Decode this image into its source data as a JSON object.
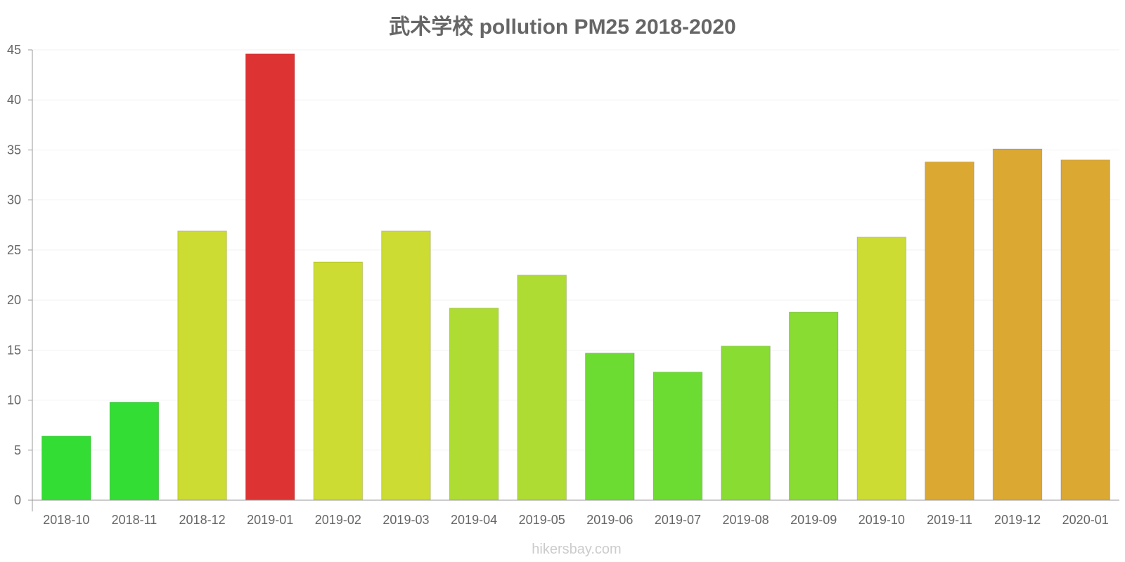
{
  "chart_data": {
    "type": "bar",
    "title": "武术学校 pollution PM25 2018-2020",
    "xlabel": "",
    "ylabel": "",
    "ylim": [
      0,
      45
    ],
    "yticks": [
      0,
      5,
      10,
      15,
      20,
      25,
      30,
      35,
      40,
      45
    ],
    "categories": [
      "2018-10",
      "2018-11",
      "2018-12",
      "2019-01",
      "2019-02",
      "2019-03",
      "2019-04",
      "2019-05",
      "2019-06",
      "2019-07",
      "2019-08",
      "2019-09",
      "2019-10",
      "2019-11",
      "2019-12",
      "2020-01"
    ],
    "values": [
      6.4,
      9.8,
      26.9,
      44.6,
      23.8,
      26.9,
      19.2,
      22.5,
      14.7,
      12.8,
      15.4,
      18.8,
      26.3,
      33.8,
      35.1,
      34.0
    ],
    "bar_colors": [
      "#33dd33",
      "#33dd33",
      "#cddc32",
      "#dd3333",
      "#cddc32",
      "#cddc32",
      "#aedc32",
      "#aedc32",
      "#6ddc32",
      "#6ddc32",
      "#88dc32",
      "#88dc32",
      "#cddc32",
      "#dba832",
      "#dba832",
      "#dba832"
    ],
    "grid": true,
    "legend": "none"
  },
  "watermark": "hikersbay.com",
  "colors": {
    "text": "#666666",
    "axis": "#999999",
    "grid": "#f2f2f2",
    "watermark": "#cccccc"
  }
}
